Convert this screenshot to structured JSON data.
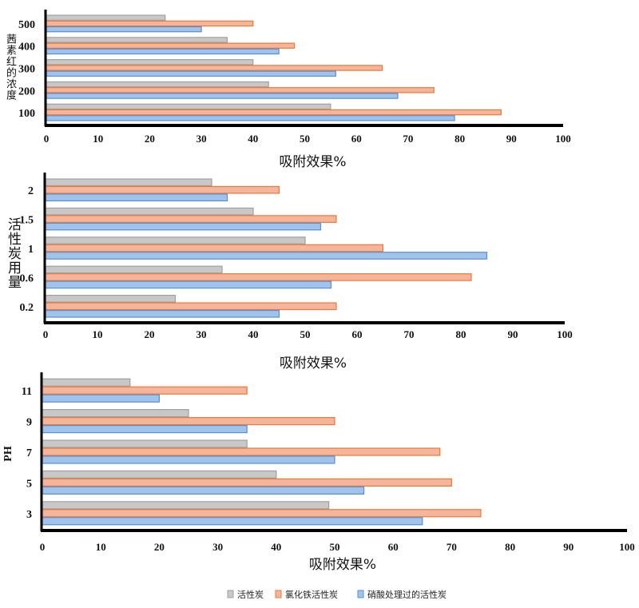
{
  "legend": [
    "活性炭",
    "氯化铁活性炭",
    "硝酸处理过的活性炭"
  ],
  "colors": {
    "gray": "#c8c8c8",
    "orange": "#f4b59a",
    "blue": "#9fc3ea",
    "gray_edge": "#a0a0a0",
    "orange_edge": "#e87a3c",
    "blue_edge": "#5b8fce"
  },
  "chart_data": [
    {
      "type": "bar",
      "orientation": "horizontal",
      "ylabel": "茜素红的浓度",
      "xlabel": "吸附效果%",
      "categories": [
        "500",
        "400",
        "300",
        "200",
        "100"
      ],
      "xlim": [
        0,
        100
      ],
      "xticks": [
        "0",
        "10",
        "20",
        "30",
        "40",
        "50",
        "60",
        "70",
        "80",
        "90",
        "100"
      ],
      "series": [
        {
          "name": "活性炭",
          "values": [
            23,
            35,
            40,
            43,
            55
          ]
        },
        {
          "name": "氯化铁活性炭",
          "values": [
            40,
            48,
            65,
            75,
            88
          ]
        },
        {
          "name": "硝酸处理过的活性炭",
          "values": [
            30,
            45,
            56,
            68,
            79
          ]
        }
      ]
    },
    {
      "type": "bar",
      "orientation": "horizontal",
      "ylabel": "活性炭用量",
      "xlabel": "吸附效果%",
      "categories": [
        "2",
        "1.5",
        "1",
        "0.6",
        "0.2"
      ],
      "xlim": [
        0,
        100
      ],
      "xticks": [
        "0",
        "10",
        "20",
        "30",
        "40",
        "50",
        "60",
        "70",
        "80",
        "90",
        "100"
      ],
      "series": [
        {
          "name": "活性炭",
          "values": [
            32,
            40,
            50,
            34,
            25
          ]
        },
        {
          "name": "氯化铁活性炭",
          "values": [
            45,
            56,
            65,
            82,
            56
          ]
        },
        {
          "name": "硝酸处理过的活性炭",
          "values": [
            35,
            53,
            85,
            55,
            45
          ]
        }
      ]
    },
    {
      "type": "bar",
      "orientation": "horizontal",
      "ylabel": "PH",
      "xlabel": "吸附效果%",
      "categories": [
        "11",
        "9",
        "7",
        "5",
        "3"
      ],
      "xlim": [
        0,
        100
      ],
      "xticks": [
        "0",
        "10",
        "20",
        "30",
        "40",
        "50",
        "60",
        "70",
        "80",
        "90",
        "100"
      ],
      "series": [
        {
          "name": "活性炭",
          "values": [
            15,
            25,
            35,
            40,
            49
          ]
        },
        {
          "name": "氯化铁活性炭",
          "values": [
            35,
            50,
            68,
            70,
            75
          ]
        },
        {
          "name": "硝酸处理过的活性炭",
          "values": [
            20,
            35,
            50,
            55,
            65
          ]
        }
      ],
      "legend_position": "bottom"
    }
  ]
}
